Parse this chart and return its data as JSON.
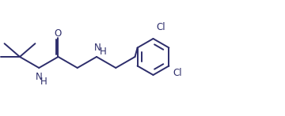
{
  "bg_color": "#ffffff",
  "line_color": "#2d2d6b",
  "font_size": 8.5,
  "line_width": 1.4,
  "figsize": [
    3.6,
    1.47
  ],
  "dpi": 100,
  "xlim": [
    0,
    36
  ],
  "ylim": [
    0,
    14.7
  ]
}
